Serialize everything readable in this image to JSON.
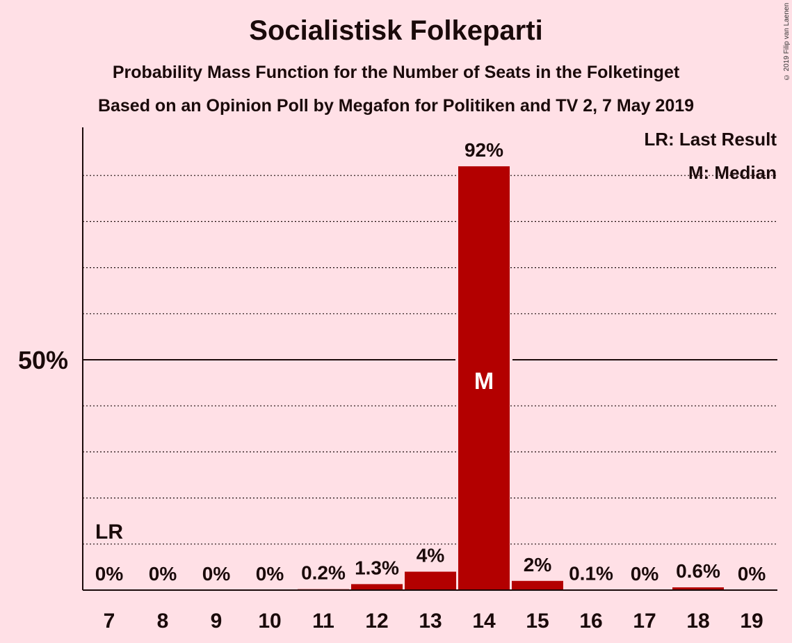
{
  "chart_data": {
    "type": "bar",
    "title": "Socialistisk Folkeparti",
    "subtitle": "Probability Mass Function for the Number of Seats in the Folketinget",
    "subtitle2": "Based on an Opinion Poll by Megafon for Politiken and TV 2, 7 May 2019",
    "copyright": "© 2019 Filip van Laenen",
    "categories": [
      "7",
      "8",
      "9",
      "10",
      "11",
      "12",
      "13",
      "14",
      "15",
      "16",
      "17",
      "18",
      "19"
    ],
    "values": [
      0,
      0,
      0,
      0,
      0.2,
      1.3,
      4,
      92,
      2,
      0.1,
      0,
      0.6,
      0
    ],
    "value_labels": [
      "0%",
      "0%",
      "0%",
      "0%",
      "0.2%",
      "1.3%",
      "4%",
      "92%",
      "2%",
      "0.1%",
      "0%",
      "0.6%",
      "0%"
    ],
    "ylim": [
      0,
      100
    ],
    "y_tick_label": "50%",
    "y_tick_value": 50,
    "gridline_step": 10,
    "last_result_category": "7",
    "last_result_label": "LR",
    "median_category": "14",
    "median_label": "M",
    "legend": {
      "position": "top-right",
      "lr": "LR: Last Result",
      "m": "M: Median"
    },
    "bar_color": "#b30000",
    "background_color": "#ffe0e6"
  }
}
